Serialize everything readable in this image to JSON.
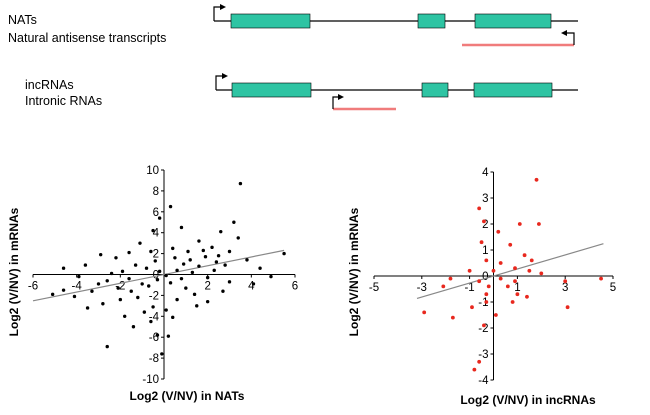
{
  "schematic": {
    "nats": {
      "label": "NATs",
      "sublabel": "Natural antisense transcripts",
      "exon_color": "#2ec4a3",
      "antisense_color": "#f07c7c"
    },
    "incrnas": {
      "label": "incRNAs",
      "sublabel": "Intronic RNAs",
      "exon_color": "#2ec4a3",
      "intronic_color": "#f07c7c"
    }
  },
  "chart_data": [
    {
      "type": "scatter",
      "xlabel": "Log2 (V/NV) in NATs",
      "ylabel": "Log2 (V/NV) in mRNAs",
      "xlim": [
        -6,
        6
      ],
      "ylim": [
        -10,
        10
      ],
      "xticks": [
        -6,
        -4,
        -2,
        0,
        2,
        4,
        6
      ],
      "yticks": [
        -10,
        -8,
        -6,
        -4,
        -2,
        0,
        2,
        4,
        6,
        8,
        10
      ],
      "point_color": "#000000",
      "trendline": {
        "slope": 0.42,
        "intercept": 0,
        "x_range": [
          -6,
          5.5
        ],
        "color": "#888888"
      },
      "points": [
        [
          3.5,
          8.7
        ],
        [
          0.3,
          6.5
        ],
        [
          -0.2,
          5.4
        ],
        [
          3.2,
          5.0
        ],
        [
          2.6,
          4.1
        ],
        [
          3.4,
          3.5
        ],
        [
          0.8,
          4.5
        ],
        [
          -0.5,
          4.2
        ],
        [
          5.5,
          2.0
        ],
        [
          4.4,
          0.6
        ],
        [
          4.9,
          -0.2
        ],
        [
          4.1,
          -0.9
        ],
        [
          3.0,
          -0.7
        ],
        [
          3.8,
          1.4
        ],
        [
          2.8,
          0.9
        ],
        [
          2.2,
          2.6
        ],
        [
          1.9,
          1.7
        ],
        [
          1.6,
          3.2
        ],
        [
          2.4,
          1.2
        ],
        [
          1.1,
          2.2
        ],
        [
          0.4,
          2.5
        ],
        [
          -0.6,
          2.2
        ],
        [
          -1.1,
          3.0
        ],
        [
          -1.6,
          2.1
        ],
        [
          -2.2,
          1.6
        ],
        [
          -2.9,
          1.9
        ],
        [
          -3.6,
          0.9
        ],
        [
          -4.6,
          0.6
        ],
        [
          -5.1,
          -1.9
        ],
        [
          -4.1,
          -2.1
        ],
        [
          -3.3,
          -1.6
        ],
        [
          -2.6,
          -0.6
        ],
        [
          -2.1,
          -1.3
        ],
        [
          -1.6,
          -0.4
        ],
        [
          -1.2,
          -2.2
        ],
        [
          -0.7,
          -1.1
        ],
        [
          -0.3,
          -0.5
        ],
        [
          0.1,
          -0.1
        ],
        [
          0.6,
          0.4
        ],
        [
          0.9,
          1.0
        ],
        [
          1.3,
          0.2
        ],
        [
          1.6,
          0.8
        ],
        [
          2.0,
          -0.3
        ],
        [
          2.3,
          0.4
        ],
        [
          2.7,
          -1.6
        ],
        [
          -0.3,
          -5.8
        ],
        [
          0.2,
          -5.9
        ],
        [
          0.1,
          -3.4
        ],
        [
          -0.5,
          -3.1
        ],
        [
          0.6,
          -2.4
        ],
        [
          1.0,
          -1.3
        ],
        [
          1.4,
          -1.9
        ],
        [
          -2.6,
          -6.9
        ],
        [
          -0.1,
          -7.6
        ],
        [
          -1.8,
          -4.0
        ],
        [
          -0.9,
          -3.6
        ],
        [
          -3.9,
          -0.2
        ],
        [
          -4.6,
          -1.5
        ],
        [
          -0.4,
          1.3
        ],
        [
          -0.8,
          0.6
        ],
        [
          -1.3,
          0.9
        ],
        [
          -1.9,
          0.3
        ],
        [
          -2.4,
          0.1
        ],
        [
          -3.0,
          -0.9
        ],
        [
          0.5,
          1.6
        ],
        [
          1.2,
          1.4
        ],
        [
          1.8,
          2.3
        ],
        [
          2.5,
          1.8
        ],
        [
          3.0,
          2.2
        ],
        [
          -0.2,
          0.3
        ],
        [
          0.3,
          -0.8
        ],
        [
          0.8,
          -0.4
        ],
        [
          -1.0,
          -0.9
        ],
        [
          -1.5,
          -1.6
        ],
        [
          -2.0,
          -2.4
        ],
        [
          -2.8,
          -2.8
        ],
        [
          -3.5,
          -3.2
        ],
        [
          1.5,
          -3.0
        ],
        [
          2.0,
          -2.6
        ],
        [
          0.4,
          -4.1
        ],
        [
          -0.6,
          -4.5
        ],
        [
          -1.4,
          -5.0
        ]
      ]
    },
    {
      "type": "scatter",
      "xlabel": "Log2 (V/NV) in incRNAs",
      "ylabel": "Log2 (V/NV) in mRNAs",
      "xlim": [
        -5,
        5
      ],
      "ylim": [
        -4,
        4
      ],
      "xticks": [
        -5,
        -3,
        -1,
        1,
        3,
        5
      ],
      "yticks": [
        -4,
        -3,
        -2,
        -1,
        0,
        1,
        2,
        3,
        4
      ],
      "point_color": "#e8281e",
      "trendline": {
        "slope": 0.27,
        "intercept": 0,
        "x_range": [
          -3.2,
          4.6
        ],
        "color": "#888888"
      },
      "points": [
        [
          1.8,
          3.7
        ],
        [
          -0.6,
          2.6
        ],
        [
          -0.4,
          2.1
        ],
        [
          1.1,
          2.0
        ],
        [
          1.9,
          2.0
        ],
        [
          0.2,
          1.7
        ],
        [
          -0.5,
          1.3
        ],
        [
          1.3,
          0.8
        ],
        [
          0.7,
          1.2
        ],
        [
          1.6,
          0.6
        ],
        [
          -0.3,
          0.6
        ],
        [
          0.3,
          0.5
        ],
        [
          0.0,
          0.2
        ],
        [
          0.9,
          0.3
        ],
        [
          1.5,
          0.2
        ],
        [
          2.0,
          0.1
        ],
        [
          -1.0,
          0.2
        ],
        [
          -1.8,
          -0.1
        ],
        [
          -2.1,
          -0.4
        ],
        [
          -0.6,
          -0.2
        ],
        [
          -0.2,
          -0.4
        ],
        [
          0.3,
          -0.1
        ],
        [
          0.6,
          -0.4
        ],
        [
          1.0,
          -0.7
        ],
        [
          1.4,
          -0.8
        ],
        [
          0.9,
          -0.2
        ],
        [
          4.5,
          -0.1
        ],
        [
          3.0,
          -0.2
        ],
        [
          3.1,
          -1.2
        ],
        [
          -2.9,
          -1.4
        ],
        [
          -1.7,
          -1.6
        ],
        [
          -0.9,
          -1.2
        ],
        [
          -0.3,
          -1.0
        ],
        [
          -0.4,
          -1.9
        ],
        [
          0.1,
          -1.5
        ],
        [
          0.8,
          -1.0
        ],
        [
          -0.6,
          -3.3
        ],
        [
          -0.8,
          -3.6
        ],
        [
          -0.3,
          -0.7
        ]
      ]
    }
  ]
}
